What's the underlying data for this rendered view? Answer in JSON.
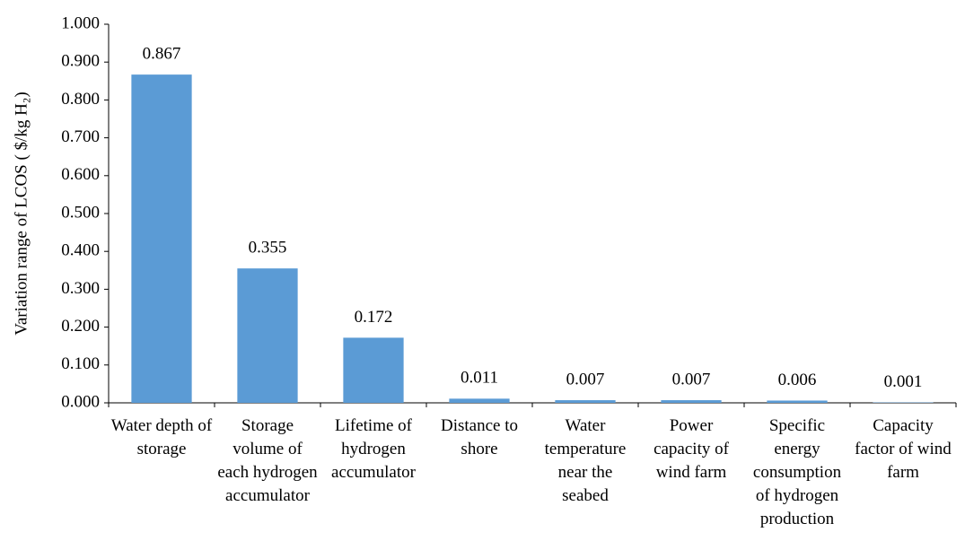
{
  "chart_data": {
    "type": "bar",
    "y_label": "Variation range of LCOS ( $/kg H₂)",
    "categories": [
      "Water depth of storage",
      "Storage volume of each hydrogen accumulator",
      "Lifetime of hydrogen accumulator",
      "Distance to shore",
      "Water temperature near the seabed",
      "Power capacity of wind farm",
      "Specific energy consumption of hydrogen production",
      "Capacity factor of wind farm"
    ],
    "values": [
      0.867,
      0.355,
      0.172,
      0.011,
      0.007,
      0.007,
      0.006,
      0.001
    ],
    "color": "#5b9bd5",
    "ylim": [
      0,
      1
    ],
    "yticks": [
      {
        "value": 0,
        "label": "0.000"
      },
      {
        "value": 0.1,
        "label": "0.100"
      },
      {
        "value": 0.2,
        "label": "0.200"
      },
      {
        "value": 0.3,
        "label": "0.300"
      },
      {
        "value": 0.4,
        "label": "0.400"
      },
      {
        "value": 0.5,
        "label": "0.500"
      },
      {
        "value": 0.6,
        "label": "0.600"
      },
      {
        "value": 0.7,
        "label": "0.700"
      },
      {
        "value": 0.8,
        "label": "0.800"
      },
      {
        "value": 0.9,
        "label": "0.900"
      },
      {
        "value": 1,
        "label": "1.000"
      }
    ],
    "grid": false
  }
}
